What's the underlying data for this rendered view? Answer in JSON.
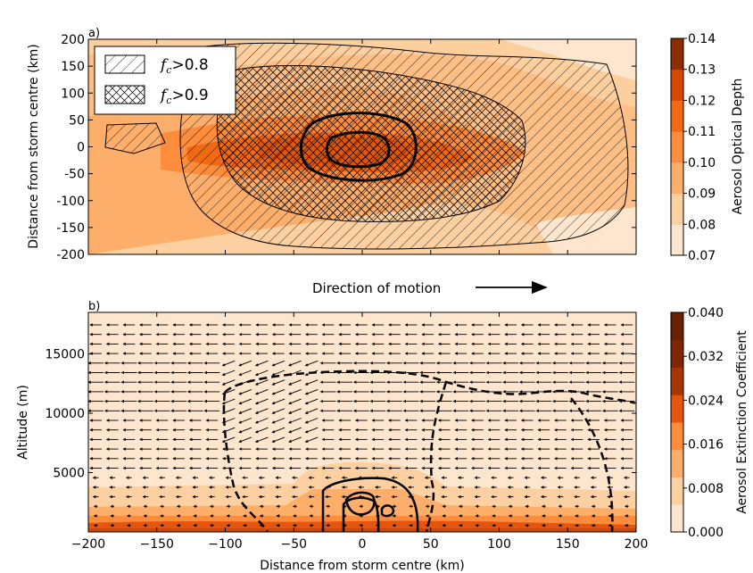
{
  "chart_data": [
    {
      "panel": "a)",
      "type": "heatmap",
      "ylabel": "Distance from storm centre (km)",
      "x_range_km": [
        -200,
        200
      ],
      "y_range_km": [
        -200,
        200
      ],
      "yticks": [
        200,
        150,
        100,
        50,
        0,
        -50,
        -100,
        -150,
        -200
      ],
      "ytick_labels": [
        "200",
        "150",
        "100",
        "50",
        "0",
        "-50",
        "-100",
        "-150",
        "-200"
      ],
      "annotation": "Direction of motion",
      "colorbar": {
        "label": "Aerosol Optical Depth",
        "ticks": [
          0.07,
          0.08,
          0.09,
          0.1,
          0.11,
          0.12,
          0.13,
          0.14
        ],
        "tick_labels": [
          "0.07",
          "0.08",
          "0.09",
          "0.10",
          "0.11",
          "0.12",
          "0.13",
          "0.14"
        ],
        "colors": [
          "#fee6ce",
          "#fdd0a2",
          "#fdae6b",
          "#fd8d3c",
          "#f16913",
          "#d94801",
          "#8c2d04"
        ]
      },
      "legend": {
        "placement": "top-left",
        "entries": [
          {
            "symbol": "f",
            "sub": "c",
            "label": ">0.8",
            "hatch": "single diagonal"
          },
          {
            "symbol": "f",
            "sub": "c",
            "label": ">0.9",
            "hatch": "cross-hatch"
          }
        ]
      },
      "field_description": {
        "max_aod_near_centre": 0.115,
        "min_aod_right_edge": 0.07,
        "contour_core_radius_km": 30
      }
    },
    {
      "panel": "b)",
      "type": "heatmap",
      "xlabel": "Distance from storm centre (km)",
      "ylabel": "Altitude (m)",
      "x_range_km": [
        -200,
        200
      ],
      "y_range_m": [
        0,
        18500
      ],
      "xticks": [
        -200,
        -150,
        -100,
        -50,
        0,
        50,
        100,
        150,
        200
      ],
      "xtick_labels": [
        "−200",
        "−150",
        "−100",
        "−50",
        "0",
        "50",
        "100",
        "150",
        "200"
      ],
      "yticks": [
        5000,
        10000,
        15000
      ],
      "ytick_labels": [
        "5000",
        "10000",
        "15000"
      ],
      "colorbar": {
        "label": "Aerosol Extinction Coefficient",
        "ticks": [
          0.0,
          0.008,
          0.016,
          0.024,
          0.032,
          0.04
        ],
        "tick_labels": [
          "0.000",
          "0.008",
          "0.016",
          "0.024",
          "0.032",
          "0.040"
        ],
        "colors": [
          "#fee6ce",
          "#fdd0a2",
          "#fdae6b",
          "#fd8d3c",
          "#e6550d",
          "#a63603",
          "#7f2704",
          "#6a1f03"
        ]
      },
      "overlay": "wind vectors (storm-relative, mostly right-to-left)",
      "layers_m": [
        {
          "top": 5200,
          "value": 0.006
        },
        {
          "top": 3300,
          "value": 0.01
        },
        {
          "top": 2200,
          "value": 0.014
        },
        {
          "top": 1500,
          "value": 0.02
        }
      ]
    }
  ]
}
